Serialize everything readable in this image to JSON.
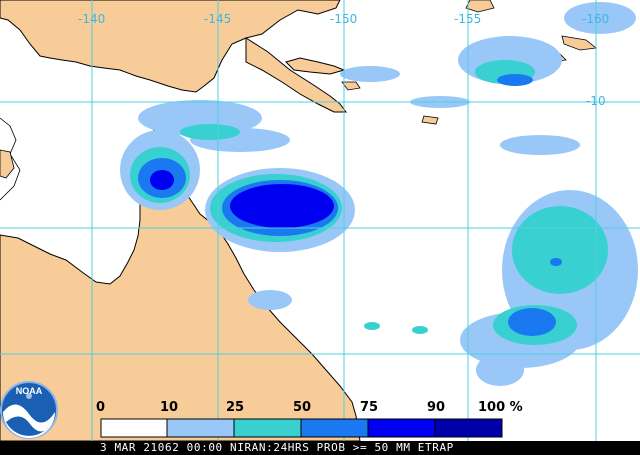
{
  "map": {
    "longitude_labels": [
      "-140",
      "-145",
      "-150",
      "-155",
      "-160"
    ],
    "latitude_labels": [
      "-10"
    ],
    "land_color": "#f8cc98",
    "ocean_color": "#ffffff",
    "grid_color": "#4fd0e0"
  },
  "legend": {
    "ticks": [
      "0",
      "10",
      "25",
      "50",
      "75",
      "90",
      "100 %"
    ],
    "bins": [
      {
        "from": 0,
        "to": 10,
        "color": "#ffffff"
      },
      {
        "from": 10,
        "to": 25,
        "color": "#99c8f8"
      },
      {
        "from": 25,
        "to": 50,
        "color": "#38d0d0"
      },
      {
        "from": 50,
        "to": 75,
        "color": "#1a78f0"
      },
      {
        "from": 75,
        "to": 90,
        "color": "#0000f0"
      },
      {
        "from": 90,
        "to": 100,
        "color": "#0000a8"
      }
    ]
  },
  "footer": {
    "caption": "3 MAR 21062 00:00 NIRAN:24HRS PROB >= 50 MM ETRAP"
  },
  "logo": {
    "text": "NOAA"
  }
}
